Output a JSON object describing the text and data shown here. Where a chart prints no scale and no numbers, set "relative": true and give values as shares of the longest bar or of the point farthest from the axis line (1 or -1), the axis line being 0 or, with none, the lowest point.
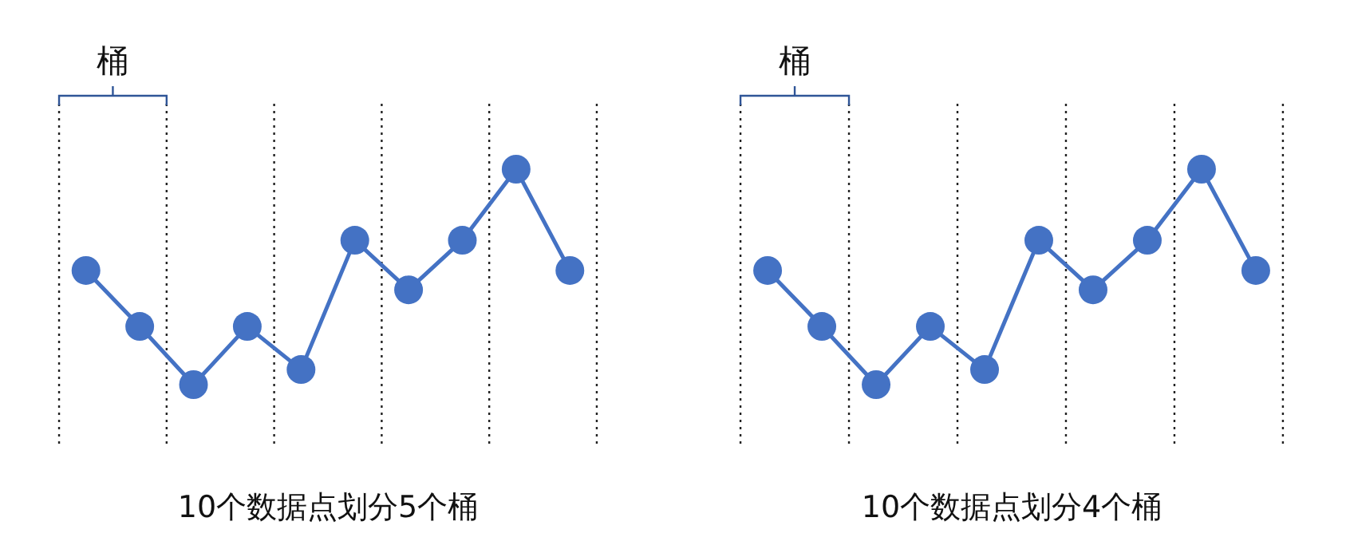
{
  "chart_data": [
    {
      "type": "line",
      "relative": true,
      "categories": [
        null,
        null,
        null,
        null,
        null,
        null,
        null,
        null,
        null,
        null
      ],
      "xlabel": "10个数据点划分5个桶",
      "annotations": [
        "桶"
      ],
      "marker": "circle",
      "series": [
        {
          "color": "#4472c4",
          "values": [
            0.53,
            0.27,
            0,
            0.27,
            0.07,
            0.67,
            0.44,
            0.67,
            1,
            0.53
          ]
        }
      ]
    },
    {
      "type": "line",
      "relative": true,
      "categories": [
        null,
        null,
        null,
        null,
        null,
        null,
        null,
        null,
        null,
        null
      ],
      "xlabel": "10个数据点划分4个桶",
      "annotations": [
        "桶"
      ],
      "marker": "circle",
      "series": [
        {
          "color": "#4472c4",
          "values": [
            0.53,
            0.27,
            0,
            0.27,
            0.07,
            0.67,
            0.44,
            0.67,
            1,
            0.53
          ]
        }
      ]
    }
  ]
}
